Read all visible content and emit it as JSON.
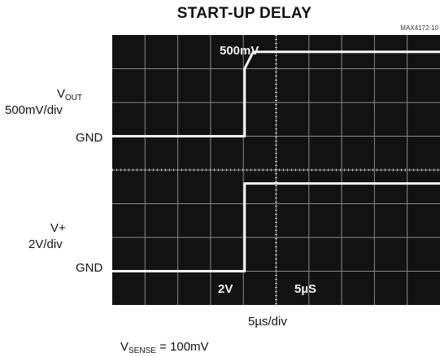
{
  "chart_data": {
    "type": "line",
    "title": "START-UP DELAY",
    "figure_id": "MAX4172-10",
    "xlabel": "5µs/div",
    "note_prefix": "V",
    "note_sub": "SENSE",
    "note_suffix": " = 100mV",
    "x_unit": "µs",
    "xlim": [
      0,
      50
    ],
    "divisions_x": 10,
    "divisions_y": 8,
    "screen_texts": [
      {
        "id": "top_scale",
        "text": "500mV"
      },
      {
        "id": "ch2_scale",
        "text": "2V"
      },
      {
        "id": "time_scale",
        "text": "5µS"
      }
    ],
    "series": [
      {
        "name_main": "V",
        "name_sub": "OUT",
        "scale": "500mV/div",
        "ground_label": "GND",
        "unit": "mV",
        "x": [
          0,
          20.2,
          20.2,
          21.5,
          50
        ],
        "y": [
          0,
          0,
          1000,
          1250,
          1250
        ]
      },
      {
        "name_main": "V+",
        "name_sub": "",
        "scale": "2V/div",
        "ground_label": "GND",
        "unit": "V",
        "x": [
          0,
          20.2,
          20.2,
          50
        ],
        "y": [
          0,
          0,
          5.2,
          5.2
        ]
      }
    ]
  }
}
